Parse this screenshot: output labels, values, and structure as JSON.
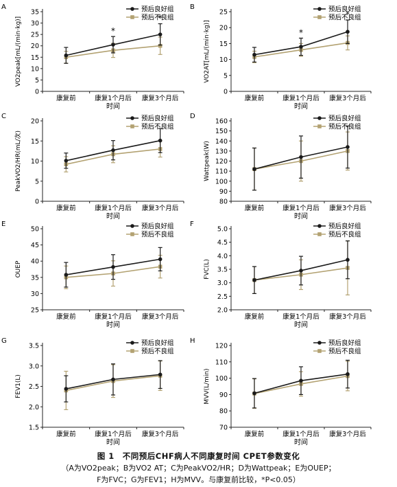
{
  "figure": {
    "title": "图 1　不同预后CHF病人不同康复时间 CPET参数变化",
    "note_line1": "（A为VO2peak；B为VO2 AT；C为PeakVO2/HR；D为Wattpeak；E为OUEP；",
    "note_line2": "F为FVC；G为FEV1；H为MVV。与康复前比较，*P<0.05）"
  },
  "colors": {
    "good": "#1a1a1a",
    "poor": "#b3a272"
  },
  "chart_data": [
    {
      "panel": "A",
      "type": "line",
      "ylabel": "VO2peak[mL/(min·kg)]",
      "xlabel": "时间",
      "categories": [
        "康复前",
        "康复1个月后",
        "康复3个月后"
      ],
      "ylim": [
        0,
        35
      ],
      "yticks": [
        0,
        5,
        10,
        15,
        20,
        25,
        30,
        35
      ],
      "series": [
        {
          "name": "预后良好组",
          "values": [
            15.8,
            20.5,
            25.0
          ],
          "errors": [
            3.5,
            3.6,
            4.7
          ]
        },
        {
          "name": "预后不良组",
          "values": [
            15.0,
            18.0,
            20.0
          ],
          "errors": [
            2.6,
            3.1,
            3.8
          ]
        }
      ],
      "annotations": [
        {
          "text": "*",
          "x_index": 1
        },
        {
          "text": "*",
          "x_index": 2
        }
      ]
    },
    {
      "panel": "B",
      "type": "line",
      "ylabel": "VO2AT[mL/(min·kg)]",
      "xlabel": "时间",
      "categories": [
        "康复前",
        "康复1个月后",
        "康复3个月后"
      ],
      "ylim": [
        0,
        25
      ],
      "yticks": [
        0,
        5,
        10,
        15,
        20,
        25
      ],
      "series": [
        {
          "name": "预后良好组",
          "values": [
            11.5,
            14.0,
            18.7
          ],
          "errors": [
            2.3,
            2.7,
            3.7
          ]
        },
        {
          "name": "预后不良组",
          "values": [
            10.8,
            13.0,
            15.2
          ],
          "errors": [
            1.8,
            2.0,
            2.2
          ]
        }
      ],
      "annotations": [
        {
          "text": "*",
          "x_index": 1
        },
        {
          "text": "*",
          "x_index": 2
        }
      ]
    },
    {
      "panel": "C",
      "type": "line",
      "ylabel": "PeakVO2/HR(mL/次)",
      "xlabel": "时间",
      "categories": [
        "康复前",
        "康复1个月后",
        "康复3个月后"
      ],
      "ylim": [
        0,
        20
      ],
      "yticks": [
        0,
        5,
        10,
        15,
        20
      ],
      "series": [
        {
          "name": "预后良好组",
          "values": [
            10.1,
            12.7,
            15.1
          ],
          "errors": [
            1.9,
            2.4,
            3.0
          ]
        },
        {
          "name": "预后不良组",
          "values": [
            9.2,
            11.7,
            13.0
          ],
          "errors": [
            1.9,
            2.1,
            2.0
          ]
        }
      ],
      "annotations": []
    },
    {
      "panel": "D",
      "type": "line",
      "ylabel": "Wattpeak(W)",
      "xlabel": "时间",
      "categories": [
        "康复前",
        "康复1个月后",
        "康复3个月后"
      ],
      "ylim": [
        80,
        160
      ],
      "yticks": [
        80,
        90,
        100,
        110,
        120,
        130,
        140,
        150,
        160
      ],
      "series": [
        {
          "name": "预后良好组",
          "values": [
            112,
            124,
            134
          ],
          "errors": [
            21,
            21,
            21
          ]
        },
        {
          "name": "预后不良组",
          "values": [
            112,
            120,
            130
          ],
          "errors": [
            21,
            20,
            19
          ]
        }
      ],
      "annotations": []
    },
    {
      "panel": "E",
      "type": "line",
      "ylabel": "OUEP",
      "xlabel": "时间",
      "categories": [
        "康复前",
        "康复1个月后",
        "康复3个月后"
      ],
      "ylim": [
        25,
        50
      ],
      "yticks": [
        25,
        30,
        35,
        40,
        45,
        50
      ],
      "series": [
        {
          "name": "预后良好组",
          "values": [
            35.8,
            38.2,
            40.6
          ],
          "errors": [
            3.8,
            3.8,
            3.6
          ]
        },
        {
          "name": "预后不良组",
          "values": [
            35.0,
            36.2,
            38.3
          ],
          "errors": [
            3.5,
            3.9,
            3.5
          ]
        }
      ],
      "annotations": []
    },
    {
      "panel": "F",
      "type": "line",
      "ylabel": "FVC(L)",
      "xlabel": "时间",
      "categories": [
        "康复前",
        "康复1个月后",
        "康复3个月后"
      ],
      "ylim": [
        2.0,
        5.0
      ],
      "yticks": [
        2.0,
        2.5,
        3.0,
        3.5,
        4.0,
        4.5,
        5.0
      ],
      "series": [
        {
          "name": "预后良好组",
          "values": [
            3.1,
            3.45,
            3.85
          ],
          "errors": [
            0.5,
            0.53,
            0.7
          ]
        },
        {
          "name": "预后不良组",
          "values": [
            3.1,
            3.3,
            3.55
          ],
          "errors": [
            0.5,
            0.55,
            1.0
          ]
        }
      ],
      "annotations": []
    },
    {
      "panel": "G",
      "type": "line",
      "ylabel": "FEV1(L)",
      "xlabel": "时间",
      "categories": [
        "康复前",
        "康复1个月后",
        "康复3个月后"
      ],
      "ylim": [
        1.5,
        3.5
      ],
      "yticks": [
        1.5,
        2.0,
        2.5,
        3.0,
        3.5
      ],
      "series": [
        {
          "name": "预后良好组",
          "values": [
            2.44,
            2.67,
            2.79
          ],
          "errors": [
            0.32,
            0.38,
            0.34
          ]
        },
        {
          "name": "预后不良组",
          "values": [
            2.4,
            2.63,
            2.76
          ],
          "errors": [
            0.47,
            0.4,
            0.36
          ]
        }
      ],
      "annotations": []
    },
    {
      "panel": "H",
      "type": "line",
      "ylabel": "MVV(L/min)",
      "xlabel": "时间",
      "categories": [
        "康复前",
        "康复1个月后",
        "康复3个月后"
      ],
      "ylim": [
        70,
        120
      ],
      "yticks": [
        70,
        80,
        90,
        100,
        110,
        120
      ],
      "series": [
        {
          "name": "预后良好组",
          "values": [
            90.8,
            98.5,
            102.5
          ],
          "errors": [
            9.0,
            8.5,
            8.5
          ]
        },
        {
          "name": "预后不良组",
          "values": [
            90.6,
            96.5,
            101.3
          ],
          "errors": [
            9.0,
            7.5,
            9.0
          ]
        }
      ],
      "annotations": []
    }
  ]
}
